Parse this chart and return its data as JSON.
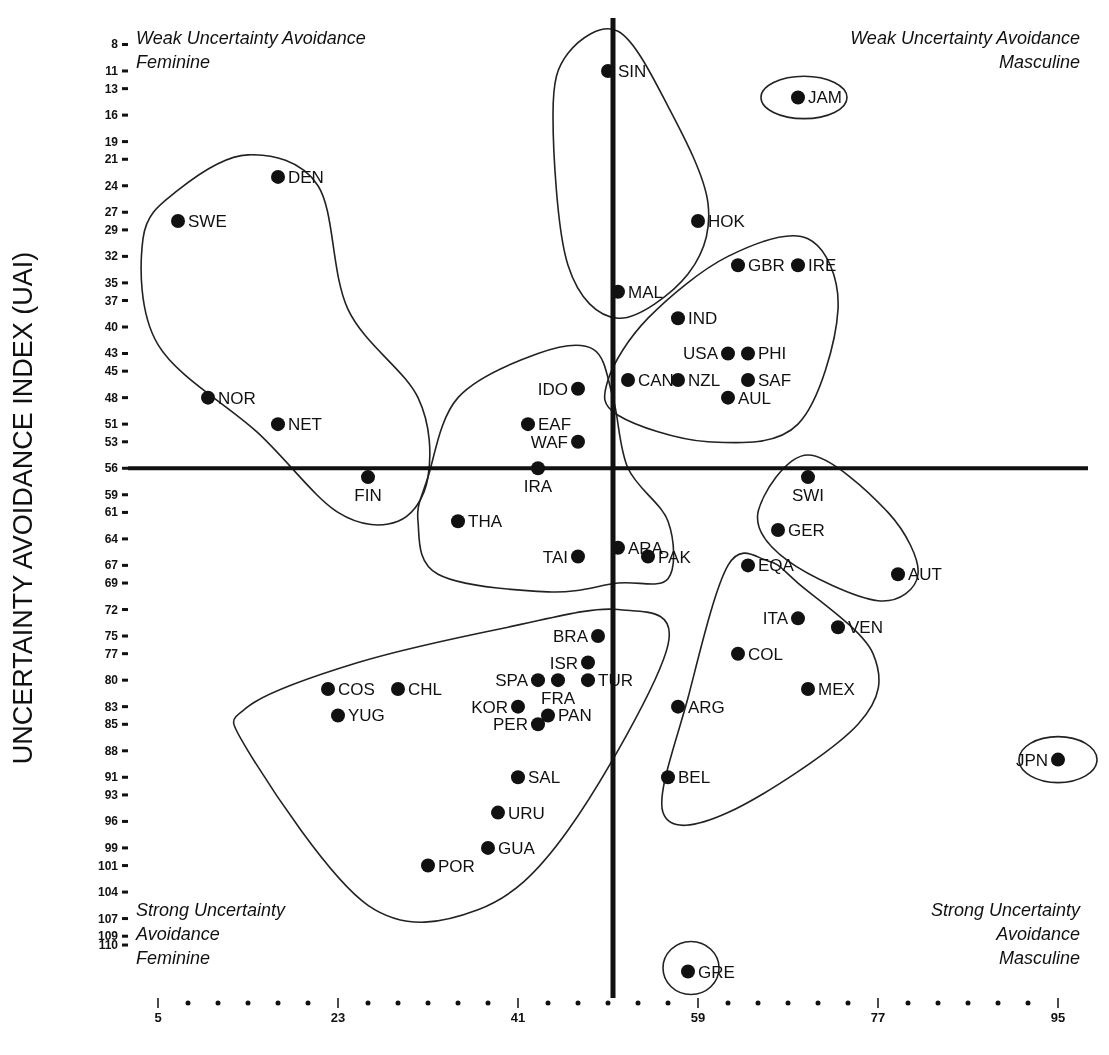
{
  "chart_data": {
    "type": "scatter",
    "ylabel": "UNCERTAINTY AVOIDANCE INDEX (UAI)",
    "annotations": [
      "Weak Uncertainty Avoidance\nFeminine",
      "Weak Uncertainty Avoidance\nMasculine",
      "Strong Uncertainty\nAvoidance\nFeminine",
      "Strong Uncertainty\nAvoidance\nMasculine"
    ],
    "x": [
      50,
      69,
      17,
      7,
      59,
      51,
      63,
      69,
      57,
      62,
      64,
      52,
      57,
      64,
      62,
      47,
      42,
      47,
      10,
      17,
      26,
      43,
      70,
      35,
      47,
      51,
      54,
      67,
      79,
      64,
      49,
      69,
      73,
      48,
      43,
      45,
      48,
      63,
      70,
      22,
      29,
      23,
      41,
      44,
      43,
      57,
      41,
      56,
      95,
      39,
      38,
      32,
      58
    ],
    "values": [
      11,
      14,
      23,
      28,
      28,
      36,
      33,
      33,
      39,
      43,
      43,
      46,
      46,
      46,
      48,
      47,
      51,
      53,
      48,
      51,
      57,
      56,
      57,
      62,
      66,
      65,
      66,
      63,
      68,
      67,
      75,
      73,
      74,
      78,
      80,
      80,
      80,
      77,
      81,
      81,
      81,
      84,
      83,
      84,
      85,
      83,
      91,
      91,
      89,
      95,
      99,
      101,
      113
    ],
    "value_labels": [
      "SIN",
      "JAM",
      "DEN",
      "SWE",
      "HOK",
      "MAL",
      "GBR",
      "IRE",
      "IND",
      "USA",
      "PHI",
      "CAN",
      "NZL",
      "SAF",
      "AUL",
      "IDO",
      "EAF",
      "WAF",
      "NOR",
      "NET",
      "FIN",
      "IRA",
      "SWI",
      "THA",
      "TAI",
      "ARA",
      "PAK",
      "GER",
      "AUT",
      "EQA",
      "BRA",
      "ITA",
      "VEN",
      "ISR",
      "SPA",
      "FRA",
      "TUR",
      "COL",
      "MEX",
      "COS",
      "CHL",
      "YUG",
      "KOR",
      "PAN",
      "PER",
      "ARG",
      "SAL",
      "BEL",
      "JPN",
      "URU",
      "GUA",
      "POR",
      "GRE"
    ],
    "color": "#111111",
    "marker": "circle",
    "xlim": [
      2,
      98
    ],
    "ylim": [
      116,
      5
    ],
    "xticks": [
      5,
      23,
      41,
      59,
      77,
      95
    ],
    "yticks": [
      8,
      11,
      13,
      16,
      19,
      21,
      24,
      27,
      29,
      32,
      35,
      37,
      40,
      43,
      45,
      48,
      51,
      53,
      56,
      59,
      61,
      64,
      67,
      69,
      72,
      75,
      77,
      80,
      83,
      85,
      88,
      91,
      93,
      96,
      99,
      101,
      104,
      107,
      109,
      110
    ],
    "ref_lines": [
      {
        "axis": "x",
        "value": 50.5,
        "color": "#111111"
      },
      {
        "axis": "y",
        "value": 56,
        "color": "#111111"
      }
    ]
  }
}
